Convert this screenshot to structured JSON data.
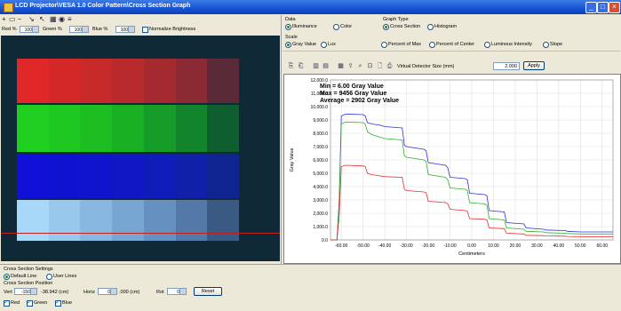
{
  "window": {
    "title": "LCD Projector\\VESA 1.0 Color Pattern\\Cross Section Graph"
  },
  "toolbar": {
    "red_label": "Red %",
    "red_value": "100",
    "green_label": "Green %",
    "green_value": "100",
    "blue_label": "Blue %",
    "blue_value": "100",
    "normalize_label": "Normalize Brightness",
    "normalize_checked": false
  },
  "data_panel": {
    "label": "Data",
    "options": [
      {
        "label": "Illuminance",
        "selected": true
      },
      {
        "label": "Color",
        "selected": false
      }
    ]
  },
  "graph_type": {
    "label": "Graph Type",
    "options": [
      {
        "label": "Cross Section",
        "selected": true
      },
      {
        "label": "Histogram",
        "selected": false
      }
    ]
  },
  "scale": {
    "label": "Scale",
    "options": [
      {
        "label": "Gray Value",
        "selected": true
      },
      {
        "label": "Lux",
        "selected": false
      },
      {
        "label": "Percent of Max",
        "selected": false
      },
      {
        "label": "Percent of Center",
        "selected": false
      },
      {
        "label": "Luminous Intensity",
        "selected": false
      },
      {
        "label": "Slope",
        "selected": false
      }
    ]
  },
  "chart_toolbar": {
    "virtual_detector_label": "Virtual Detector Size (mm)",
    "virtual_detector_value": "2.000",
    "apply_label": "Apply"
  },
  "stats": {
    "min": "Min = 6.00 Gray Value",
    "max": "Max = 9456 Gray Value",
    "average": "Average = 2902 Gray Value"
  },
  "chart_data": {
    "type": "line",
    "title": "",
    "xlabel": "Centimeters",
    "ylabel": "Gray Value",
    "xlim": [
      -65,
      65
    ],
    "ylim": [
      0,
      12000
    ],
    "x_ticks": [
      "-60.00",
      "-50.00",
      "-40.00",
      "-30.00",
      "-20.00",
      "-10.00",
      "0.00",
      "10.00",
      "20.00",
      "30.00",
      "40.00",
      "50.00",
      "60.00"
    ],
    "x_tick_values": [
      -60,
      -50,
      -40,
      -30,
      -20,
      -10,
      0,
      10,
      20,
      30,
      40,
      50,
      60
    ],
    "y_ticks": [
      "0.0",
      "1,000.0",
      "2,000.0",
      "3,000.0",
      "4,000.0",
      "5,000.0",
      "6,000.0",
      "7,000.0",
      "8,000.0",
      "9,000.0",
      "10,000.0",
      "11,000.0",
      "12,000.0"
    ],
    "y_tick_values": [
      0,
      1000,
      2000,
      3000,
      4000,
      5000,
      6000,
      7000,
      8000,
      9000,
      10000,
      11000,
      12000
    ],
    "grid": true,
    "series": [
      {
        "color": "#3030e0",
        "x": [
          -65,
          -62,
          -61,
          -60,
          -58,
          -50,
          -49,
          -48,
          -46,
          -42,
          -40,
          -32,
          -31,
          -30,
          -22,
          -21,
          -20,
          -12,
          -11,
          -10,
          -3,
          -2,
          -1,
          6,
          7,
          8,
          15,
          16,
          24,
          25,
          33,
          34,
          43,
          44,
          50,
          60,
          65
        ],
        "y": [
          0,
          0,
          3000,
          9300,
          9450,
          9400,
          9300,
          8800,
          8700,
          8600,
          8500,
          8400,
          7100,
          7000,
          6800,
          6700,
          5800,
          5600,
          5400,
          4700,
          4600,
          4500,
          3500,
          3400,
          3300,
          2200,
          2100,
          1300,
          1200,
          900,
          800,
          750,
          700,
          650,
          600,
          600,
          600
        ]
      },
      {
        "color": "#30b030",
        "x": [
          -65,
          -62,
          -61,
          -60,
          -58,
          -50,
          -49,
          -48,
          -46,
          -42,
          -40,
          -32,
          -31,
          -30,
          -22,
          -21,
          -20,
          -12,
          -11,
          -10,
          -3,
          -2,
          -1,
          6,
          7,
          8,
          15,
          16,
          24,
          25,
          33,
          34,
          43,
          44,
          50,
          60,
          65
        ],
        "y": [
          0,
          0,
          2800,
          8700,
          8850,
          8800,
          8700,
          8100,
          7900,
          7700,
          7600,
          7500,
          6300,
          6200,
          6000,
          5900,
          4900,
          4700,
          4500,
          3900,
          3800,
          3700,
          2800,
          2700,
          2600,
          1600,
          1500,
          900,
          800,
          650,
          600,
          550,
          500,
          480,
          450,
          450,
          450
        ]
      },
      {
        "color": "#e03030",
        "x": [
          -65,
          -62,
          -61,
          -60,
          -58,
          -50,
          -49,
          -48,
          -46,
          -42,
          -40,
          -32,
          -31,
          -30,
          -22,
          -21,
          -20,
          -12,
          -11,
          -10,
          -3,
          -2,
          -1,
          6,
          7,
          8,
          15,
          16,
          24,
          25,
          33,
          34,
          43,
          44,
          50,
          60,
          65
        ],
        "y": [
          0,
          0,
          1800,
          5500,
          5600,
          5550,
          5500,
          5000,
          4900,
          4800,
          4750,
          4700,
          3800,
          3700,
          3600,
          3550,
          2900,
          2800,
          2700,
          2300,
          2200,
          2150,
          1600,
          1550,
          1500,
          900,
          850,
          500,
          450,
          350,
          320,
          300,
          280,
          260,
          250,
          250,
          250
        ]
      }
    ]
  },
  "cross_section": {
    "settings_label": "Cross Section Settings",
    "default_line_label": "Default Line",
    "default_line_selected": true,
    "user_lines_label": "User Lines",
    "position_label": "Cross Section Position",
    "vert_label": "Vert",
    "vert_value": "-150",
    "vert_mm": "-38.942 (cm)",
    "horiz_label": "Horiz",
    "horiz_value": "0",
    "horiz_mm": ".000 (cm)",
    "rot_label": "Rot",
    "rot_value": "0",
    "reset_label": "Reset"
  },
  "channels": [
    {
      "label": "Red",
      "checked": true
    },
    {
      "label": "Green",
      "checked": true
    },
    {
      "label": "Blue",
      "checked": true
    }
  ],
  "pattern_colors": {
    "rows": [
      [
        "#e02828",
        "#d42828",
        "#c82a2a",
        "#b82a2c",
        "#a42a30",
        "#8c2a34",
        "#5a2a38"
      ],
      [
        "#20d020",
        "#1ec820",
        "#1cbe22",
        "#1ab024",
        "#169c28",
        "#12842c",
        "#0e5e30"
      ],
      [
        "#1010d8",
        "#1012d2",
        "#1014cc",
        "#1018c4",
        "#101cba",
        "#1020a8",
        "#102490"
      ],
      [
        "#a8d8f8",
        "#98c8ec",
        "#88b8e0",
        "#78a6d2",
        "#6690c0",
        "#5478a8",
        "#3a5a84"
      ]
    ]
  }
}
